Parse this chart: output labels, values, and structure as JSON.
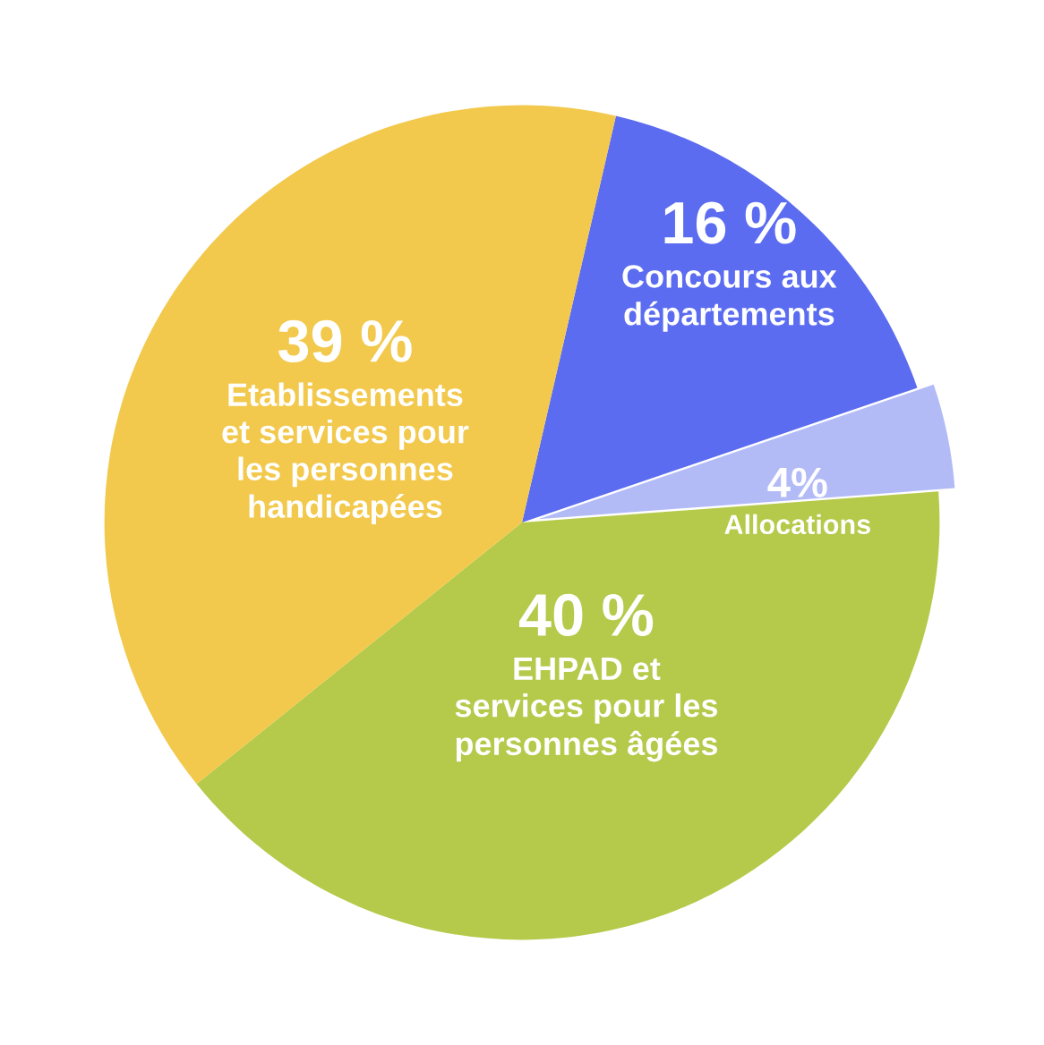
{
  "chart_data": {
    "type": "pie",
    "categories": [
      "Concours aux\ndépartements",
      "Allocations",
      "EHPAD et\nservices pour les\npersonnes âgées",
      "Etablissements\net services pour\nles personnes\nhandicapées"
    ],
    "values": [
      16,
      4,
      40,
      39
    ],
    "colors": [
      "#5b6cf0",
      "#b3bbf7",
      "#b5c94a",
      "#f2c94c"
    ],
    "value_labels": [
      "16 %",
      "4%",
      "40 %",
      "39 %"
    ]
  }
}
